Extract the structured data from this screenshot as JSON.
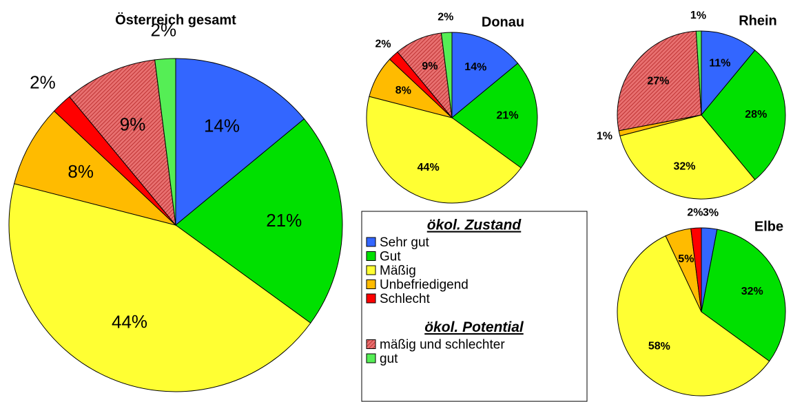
{
  "chart_data": [
    {
      "type": "pie",
      "title": "Österreich gesamt",
      "values": [
        14,
        21,
        44,
        8,
        2,
        9,
        2
      ]
    },
    {
      "type": "pie",
      "title": "Donau",
      "values": [
        14,
        21,
        44,
        8,
        2,
        9,
        2
      ]
    },
    {
      "type": "pie",
      "title": "Rhein",
      "values": [
        11,
        28,
        32,
        1,
        null,
        27,
        1
      ]
    },
    {
      "type": "pie",
      "title": "Elbe",
      "values": [
        3,
        32,
        58,
        5,
        2,
        null,
        null
      ]
    }
  ],
  "legend": {
    "sections": [
      {
        "title": "ökol. Zustand",
        "items": [
          {
            "name": "Sehr gut",
            "color": "#3366ff"
          },
          {
            "name": "Gut",
            "color": "#00e000"
          },
          {
            "name": "Mäßig",
            "color": "#ffff33"
          },
          {
            "name": "Unbefriedigend",
            "color": "#ffbb00"
          },
          {
            "name": "Schlecht",
            "color": "#ff0000"
          }
        ]
      },
      {
        "title": "ökol. Potential",
        "items": [
          {
            "name": "mäßig und schlechter",
            "color": "#e05555",
            "hatch": true
          },
          {
            "name": "gut",
            "color": "#55ee55"
          }
        ]
      }
    ]
  }
}
